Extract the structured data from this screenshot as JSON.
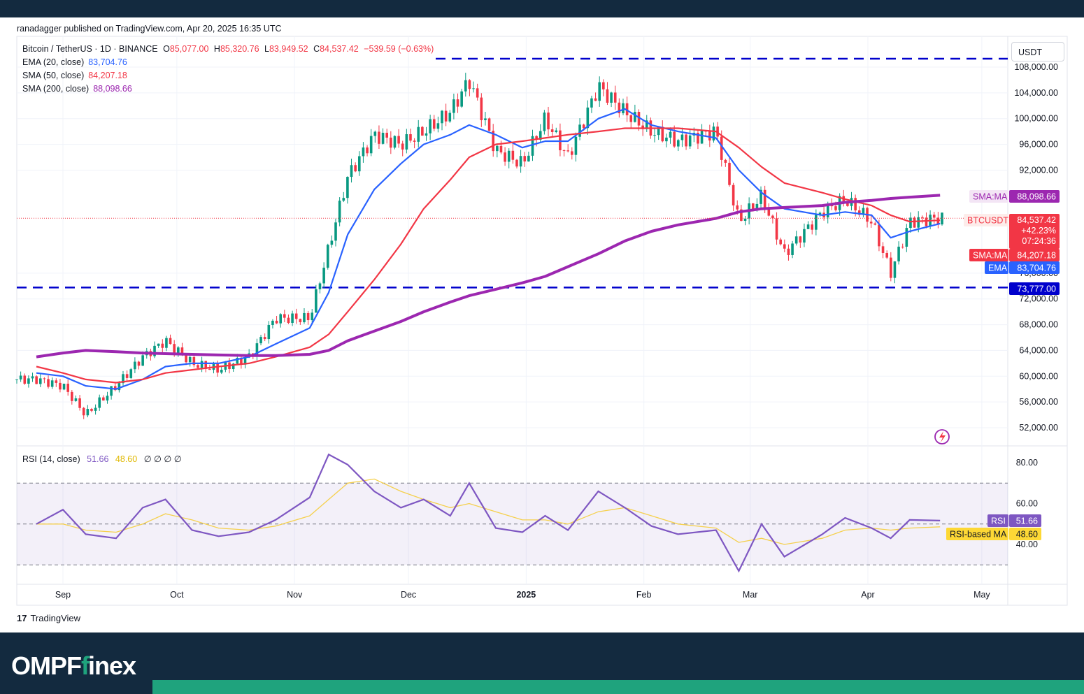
{
  "header": {
    "published": "ranadagger published on TradingView.com, Apr 20, 2025 16:35 UTC",
    "currency": "USDT"
  },
  "legend": {
    "symbol": "Bitcoin / TetherUS · 1D · BINANCE",
    "ohlc": [
      {
        "k": "O",
        "v": "85,077.00"
      },
      {
        "k": "H",
        "v": "85,320.76"
      },
      {
        "k": "L",
        "v": "83,949.52"
      },
      {
        "k": "C",
        "v": "84,537.42"
      }
    ],
    "change": "−539.59 (−0.63%)",
    "indicators": [
      {
        "name": "EMA (20, close)",
        "value": "83,704.76",
        "color": "#2962ff"
      },
      {
        "name": "SMA (50, close)",
        "value": "84,207.18",
        "color": "#f23645"
      },
      {
        "name": "SMA (200, close)",
        "value": "88,098.66",
        "color": "#9c27b0"
      }
    ]
  },
  "rsi_legend": {
    "name": "RSI (14, close)",
    "rsi": "51.66",
    "ma": "48.60",
    "extra": "∅ ∅ ∅ ∅"
  },
  "price_axis": {
    "ticks": [
      "108,000.00",
      "104,000.00",
      "100,000.00",
      "96,000.00",
      "92,000.00",
      "76,000.00",
      "72,000.00",
      "68,000.00",
      "64,000.00",
      "60,000.00",
      "56,000.00",
      "52,000.00"
    ],
    "tick_values": [
      108000,
      104000,
      100000,
      96000,
      92000,
      76000,
      72000,
      68000,
      64000,
      60000,
      56000,
      52000
    ]
  },
  "rsi_axis": {
    "ticks": [
      "80.00",
      "60.00",
      "40.00"
    ],
    "tick_values": [
      80,
      60,
      40
    ]
  },
  "time_axis": {
    "labels": [
      "Sep",
      "Oct",
      "Nov",
      "Dec",
      "2025",
      "Feb",
      "Mar",
      "Apr",
      "May"
    ]
  },
  "price_labels": {
    "sma200": {
      "tag": "SMA:MA",
      "value": "88,098.66",
      "color": "#9c27b0"
    },
    "last": {
      "tag": "BTCUSDT",
      "value": "84,537.42",
      "change": "+42.23%",
      "timer": "07:24:36",
      "color": "#f23645"
    },
    "sma50": {
      "tag": "SMA:MA",
      "value": "84,207.18",
      "color": "#f23645"
    },
    "ema20": {
      "tag": "EMA",
      "value": "83,704.76",
      "color": "#2962ff"
    },
    "support": {
      "value": "73,777.00",
      "color": "#0000cc"
    },
    "rsi": {
      "tag": "RSI",
      "value": "51.66",
      "color": "#7e57c2"
    },
    "rsi_ma": {
      "tag": "RSI-based MA",
      "value": "48.60",
      "color": "#fdd835"
    }
  },
  "colors": {
    "up": "#089981",
    "down": "#f23645",
    "level": "#0000cc",
    "rsi": "#7e57c2",
    "rsi_ma": "#f5d04c"
  },
  "footer": {
    "brand_a": "OMPF",
    "brand_b": "inex",
    "tv_mark": "17",
    "tv_text": "TradingView"
  },
  "chart_data": {
    "type": "line",
    "title": "Bitcoin / TetherUS · 1D · BINANCE",
    "xlabel": "",
    "ylabel": "",
    "ylim": [
      50500,
      110000
    ],
    "x": [
      "2024-08-25",
      "2024-09-01",
      "2024-09-07",
      "2024-09-15",
      "2024-09-22",
      "2024-09-28",
      "2024-10-05",
      "2024-10-12",
      "2024-10-20",
      "2024-10-27",
      "2024-11-05",
      "2024-11-10",
      "2024-11-15",
      "2024-11-22",
      "2024-11-29",
      "2024-12-05",
      "2024-12-12",
      "2024-12-17",
      "2024-12-24",
      "2024-12-31",
      "2025-01-06",
      "2025-01-12",
      "2025-01-20",
      "2025-01-27",
      "2025-02-03",
      "2025-02-10",
      "2025-02-20",
      "2025-02-26",
      "2025-03-04",
      "2025-03-10",
      "2025-03-20",
      "2025-03-26",
      "2025-04-02",
      "2025-04-07",
      "2025-04-12",
      "2025-04-20"
    ],
    "series": [
      {
        "name": "BTCUSDT",
        "values": [
          59500,
          58500,
          54000,
          58500,
          63000,
          65500,
          62000,
          61000,
          63000,
          69000,
          69000,
          80000,
          91000,
          97500,
          96000,
          98000,
          101000,
          106000,
          95000,
          93000,
          100000,
          94000,
          105000,
          101000,
          98000,
          96500,
          98000,
          84000,
          88000,
          79000,
          85500,
          87500,
          84000,
          76000,
          84000,
          84537
        ]
      },
      {
        "name": "EMA (20, close)",
        "values": [
          60500,
          60000,
          58500,
          58000,
          59500,
          61500,
          62000,
          62000,
          63000,
          65000,
          67500,
          73000,
          82000,
          89000,
          93000,
          96000,
          97500,
          99000,
          97500,
          95500,
          96500,
          96500,
          100000,
          101500,
          99000,
          98000,
          97000,
          92000,
          88500,
          86000,
          85000,
          85500,
          85000,
          81500,
          82500,
          83705
        ]
      },
      {
        "name": "SMA (50, close)",
        "values": [
          61500,
          60500,
          59500,
          59000,
          59500,
          60500,
          61000,
          61500,
          62000,
          63000,
          64500,
          66500,
          70000,
          75000,
          80500,
          86000,
          90500,
          94000,
          96000,
          96500,
          97000,
          97500,
          98000,
          98500,
          98500,
          98500,
          98000,
          95500,
          92500,
          90000,
          88500,
          87500,
          86500,
          85000,
          84000,
          84207
        ]
      },
      {
        "name": "SMA (200, close)",
        "values": [
          63000,
          63600,
          64000,
          63800,
          63600,
          63500,
          63400,
          63300,
          63200,
          63200,
          63400,
          64000,
          65500,
          67000,
          68500,
          70000,
          71500,
          72500,
          73500,
          74500,
          75500,
          77000,
          79000,
          81000,
          82500,
          83500,
          84500,
          85500,
          86000,
          86200,
          86500,
          87000,
          87300,
          87600,
          87800,
          88099
        ]
      }
    ],
    "levels": [
      {
        "name": "resistance",
        "value": 109000
      },
      {
        "name": "support",
        "value": 73777
      }
    ],
    "rsi": {
      "ylim": [
        20,
        85
      ],
      "bands": [
        30,
        70
      ],
      "series": [
        {
          "name": "RSI (14, close)",
          "values": [
            50,
            57,
            45,
            43,
            58,
            62,
            47,
            44,
            46,
            52,
            63,
            84,
            79,
            66,
            58,
            62,
            54,
            70,
            48,
            46,
            54,
            47,
            66,
            58,
            49,
            45,
            47,
            27,
            50,
            34,
            45,
            53,
            48,
            43,
            52,
            51.66
          ]
        },
        {
          "name": "RSI-based MA",
          "values": [
            50,
            50,
            47,
            46,
            50,
            55,
            52,
            48,
            47,
            49,
            54,
            62,
            70,
            72,
            66,
            62,
            58,
            60,
            56,
            52,
            52,
            50,
            56,
            58,
            54,
            50,
            48,
            41,
            43,
            40,
            43,
            47,
            48,
            47,
            48,
            48.6
          ]
        }
      ]
    }
  }
}
